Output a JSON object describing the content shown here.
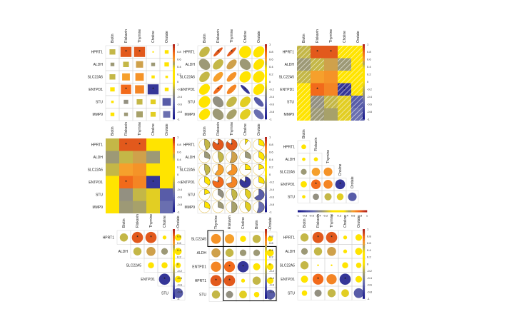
{
  "figure": {
    "description_note": ""
  },
  "colors": {
    "scale_low": "#1a1a8c",
    "scale_mid_low": "#6a6fb0",
    "scale_zero": "#ffffff",
    "scale_yellow": "#ffe400",
    "scale_olive": "#a7a16a",
    "scale_orange": "#f6a02c",
    "scale_high": "#b3261e",
    "grid": "#cccccc",
    "highlight_box": "#000000"
  },
  "colorbar_ticks": [
    "1",
    "0.8",
    "0.6",
    "0.4",
    "0.2",
    "0",
    "-0.2",
    "-0.4",
    "-0.6",
    "-0.8",
    "-1"
  ],
  "colorbar_ticks_short": [
    "1",
    "0.8",
    "0.6",
    "0.4",
    "0.2",
    "0",
    "-0.2",
    "-0.4",
    "-0.6",
    "-0.8",
    "-1"
  ],
  "colorbar_ticks_horizontal": [
    "-1",
    "-0.8",
    "-0.6",
    "-0.4",
    "-0.2",
    "0",
    "0.2",
    "0.4",
    "0.6",
    "0.8",
    "1"
  ],
  "chart_data": [
    {
      "type": "heatmap",
      "method": "square",
      "title": "",
      "columns": [
        "Biotin",
        "Riskavin",
        "Thymine",
        "Choline",
        "Orotate"
      ],
      "rows": [
        "HPRT1",
        "ALDH",
        "SLC22A5",
        "ENTPD1",
        "STU",
        "MMP9"
      ],
      "values": [
        [
          0.45,
          0.85,
          0.85,
          0.1,
          0.3
        ],
        [
          -0.3,
          0.45,
          0.55,
          -0.3,
          0.35
        ],
        [
          0.45,
          0.6,
          0.65,
          0.25,
          0.2
        ],
        [
          0.35,
          0.8,
          0.7,
          -0.85,
          0.3
        ],
        [
          0.2,
          -0.35,
          0.45,
          0.4,
          -0.65
        ],
        [
          0.3,
          -0.3,
          0.5,
          0.4,
          -0.55
        ]
      ],
      "significant": [
        [
          0,
          1
        ],
        [
          0,
          2
        ],
        [
          3,
          1
        ],
        [
          3,
          3
        ]
      ],
      "ylim": [
        -1,
        1
      ]
    },
    {
      "type": "heatmap",
      "method": "ellipse",
      "title": "",
      "columns": [
        "Biotin",
        "Riskavin",
        "Thymine",
        "Choline",
        "Orotate"
      ],
      "rows": [
        "HPRT1",
        "ALDH",
        "SLC22A5",
        "ENTPD1",
        "STU",
        "MMP9"
      ],
      "values": [
        [
          0.45,
          0.85,
          0.85,
          0.1,
          0.3
        ],
        [
          -0.3,
          0.45,
          0.55,
          -0.3,
          0.35
        ],
        [
          0.45,
          0.6,
          0.65,
          0.25,
          0.2
        ],
        [
          0.35,
          0.8,
          0.7,
          -0.85,
          0.3
        ],
        [
          0.2,
          -0.35,
          0.45,
          0.4,
          -0.65
        ],
        [
          0.3,
          -0.3,
          0.5,
          0.4,
          -0.55
        ]
      ],
      "significant": [
        [
          0,
          1
        ],
        [
          0,
          2
        ],
        [
          3,
          1
        ],
        [
          3,
          3
        ]
      ],
      "ylim": [
        -1,
        1
      ]
    },
    {
      "type": "heatmap",
      "method": "shade",
      "title": "",
      "columns": [
        "Biotin",
        "Riskavin",
        "Thymine",
        "Choline",
        "Orotate"
      ],
      "rows": [
        "HPRT1",
        "ALDH",
        "SLC22A5",
        "ENTPD1",
        "STU",
        "MMP9"
      ],
      "values": [
        [
          0.45,
          0.85,
          0.85,
          0.1,
          0.3
        ],
        [
          -0.3,
          0.45,
          0.55,
          -0.3,
          0.35
        ],
        [
          0.45,
          0.6,
          0.65,
          0.25,
          0.2
        ],
        [
          0.35,
          0.8,
          0.7,
          -0.85,
          0.3
        ],
        [
          0.2,
          -0.35,
          0.45,
          0.4,
          -0.65
        ],
        [
          0.3,
          -0.3,
          0.5,
          0.4,
          -0.55
        ]
      ],
      "significant": [
        [
          0,
          1
        ],
        [
          0,
          2
        ],
        [
          3,
          1
        ],
        [
          3,
          3
        ]
      ],
      "ylim": [
        -1,
        1
      ]
    },
    {
      "type": "heatmap",
      "method": "color",
      "title": "",
      "columns": [
        "Biotin",
        "Riskavin",
        "Thymine",
        "Choline",
        "Orotate"
      ],
      "rows": [
        "HPRT1",
        "ALDH",
        "SLC22A5",
        "ENTPD1",
        "STU",
        "MMP9"
      ],
      "values": [
        [
          0.45,
          0.85,
          0.85,
          0.1,
          0.3
        ],
        [
          -0.3,
          0.45,
          0.55,
          -0.3,
          0.35
        ],
        [
          0.45,
          0.6,
          0.65,
          0.25,
          0.2
        ],
        [
          0.35,
          0.8,
          0.7,
          -0.85,
          0.3
        ],
        [
          0.2,
          -0.35,
          0.45,
          0.4,
          -0.65
        ],
        [
          0.3,
          -0.3,
          0.5,
          0.4,
          -0.55
        ]
      ],
      "significant": [
        [
          0,
          1
        ],
        [
          0,
          2
        ],
        [
          3,
          1
        ],
        [
          3,
          3
        ]
      ],
      "ylim": [
        -1,
        1
      ]
    },
    {
      "type": "heatmap",
      "method": "pie",
      "title": "",
      "columns": [
        "Biotin",
        "Riskavin",
        "Thymine",
        "Choline",
        "Orotate"
      ],
      "rows": [
        "HPRT1",
        "ALDH",
        "SLC22A5",
        "ENTPD1",
        "STU",
        "MMP9"
      ],
      "values": [
        [
          0.45,
          0.85,
          0.85,
          0.1,
          0.3
        ],
        [
          -0.3,
          0.45,
          0.55,
          -0.3,
          0.35
        ],
        [
          0.45,
          0.6,
          0.65,
          0.25,
          0.2
        ],
        [
          0.35,
          0.8,
          0.7,
          -0.85,
          0.3
        ],
        [
          0.2,
          -0.35,
          0.45,
          0.4,
          -0.65
        ],
        [
          0.3,
          -0.3,
          0.5,
          0.4,
          -0.55
        ]
      ],
      "significant": [
        [
          0,
          1
        ],
        [
          0,
          2
        ],
        [
          3,
          1
        ],
        [
          3,
          3
        ]
      ],
      "ylim": [
        -1,
        1
      ]
    },
    {
      "type": "heatmap",
      "method": "circle-lower",
      "title": "",
      "columns": [
        "Biotin",
        "Riskavin",
        "Thymine",
        "Choline",
        "Orotate"
      ],
      "rows": [
        "HPRT1",
        "ALDH",
        "SLC22A5",
        "ENTPD1",
        "STU"
      ],
      "values": [
        [
          0.2,
          0,
          0,
          0,
          0
        ],
        [
          0.1,
          0.15,
          0,
          0,
          0
        ],
        [
          -0.3,
          0.6,
          0.65,
          0,
          0
        ],
        [
          0.35,
          0.8,
          0.7,
          -0.85,
          0
        ],
        [
          0.1,
          -0.35,
          0.45,
          0.4,
          -0.65
        ]
      ],
      "significant": [
        [
          3,
          1
        ],
        [
          3,
          3
        ]
      ],
      "ylim": [
        -1,
        1
      ],
      "legend": "bottom"
    },
    {
      "type": "heatmap",
      "method": "circle-upper",
      "title": "",
      "columns": [
        "Biotin",
        "Riskavin",
        "Thymine",
        "Choline",
        "Orotate"
      ],
      "rows": [
        "HPRT1",
        "ALDH",
        "SLC22A5",
        "ENTPD1",
        "STU"
      ],
      "values": [
        [
          0.45,
          0.85,
          0.85,
          0.1,
          0.3
        ],
        [
          0,
          0.45,
          0.55,
          -0.3,
          0.35
        ],
        [
          0,
          0,
          0.25,
          0.25,
          0.2
        ],
        [
          0,
          0,
          0,
          -0.85,
          0.3
        ],
        [
          0,
          0,
          0,
          0,
          -0.65
        ]
      ],
      "significant": [
        [
          0,
          1
        ],
        [
          0,
          2
        ],
        [
          3,
          3
        ]
      ],
      "ylim": [
        -1,
        1
      ]
    },
    {
      "type": "heatmap",
      "method": "circle-clustered",
      "title": "",
      "columns": [
        "Thymine",
        "Riskavin",
        "Choline",
        "Biotin",
        "Orotate"
      ],
      "rows": [
        "SLC22A5",
        "ALDH",
        "ENTPD1",
        "HPRT1",
        "STU"
      ],
      "values": [
        [
          0.65,
          0.6,
          0.25,
          0.45,
          0.2
        ],
        [
          0.55,
          0.45,
          -0.3,
          -0.3,
          0.35
        ],
        [
          0.7,
          0.8,
          -0.85,
          0.35,
          0.3
        ],
        [
          0.85,
          0.85,
          0.1,
          0.45,
          0.3
        ],
        [
          0.45,
          -0.35,
          0.4,
          0.2,
          -0.65
        ]
      ],
      "significant": [
        [
          2,
          1
        ],
        [
          2,
          2
        ],
        [
          3,
          0
        ],
        [
          3,
          1
        ]
      ],
      "ylim": [
        -1,
        1
      ],
      "highlight_boxes": 2
    },
    {
      "type": "heatmap",
      "method": "circle",
      "title": "",
      "columns": [
        "Biotin",
        "Riskavin",
        "Thymine",
        "Choline",
        "Orotate"
      ],
      "rows": [
        "HPRT1",
        "ALDH",
        "SLC22A5",
        "ENTPD1",
        "STU"
      ],
      "values": [
        [
          0.45,
          0.85,
          0.85,
          0.1,
          0.3
        ],
        [
          -0.3,
          0.45,
          0.55,
          0.1,
          0.35
        ],
        [
          0.45,
          0,
          0,
          0.25,
          0.2
        ],
        [
          0.35,
          0.8,
          0.7,
          -0.85,
          0.3
        ],
        [
          0.2,
          -0.35,
          0.45,
          0.4,
          -0.65
        ]
      ],
      "significant": [
        [
          0,
          1
        ],
        [
          0,
          2
        ],
        [
          3,
          1
        ],
        [
          3,
          3
        ]
      ],
      "ylim": [
        -1,
        1
      ]
    }
  ]
}
